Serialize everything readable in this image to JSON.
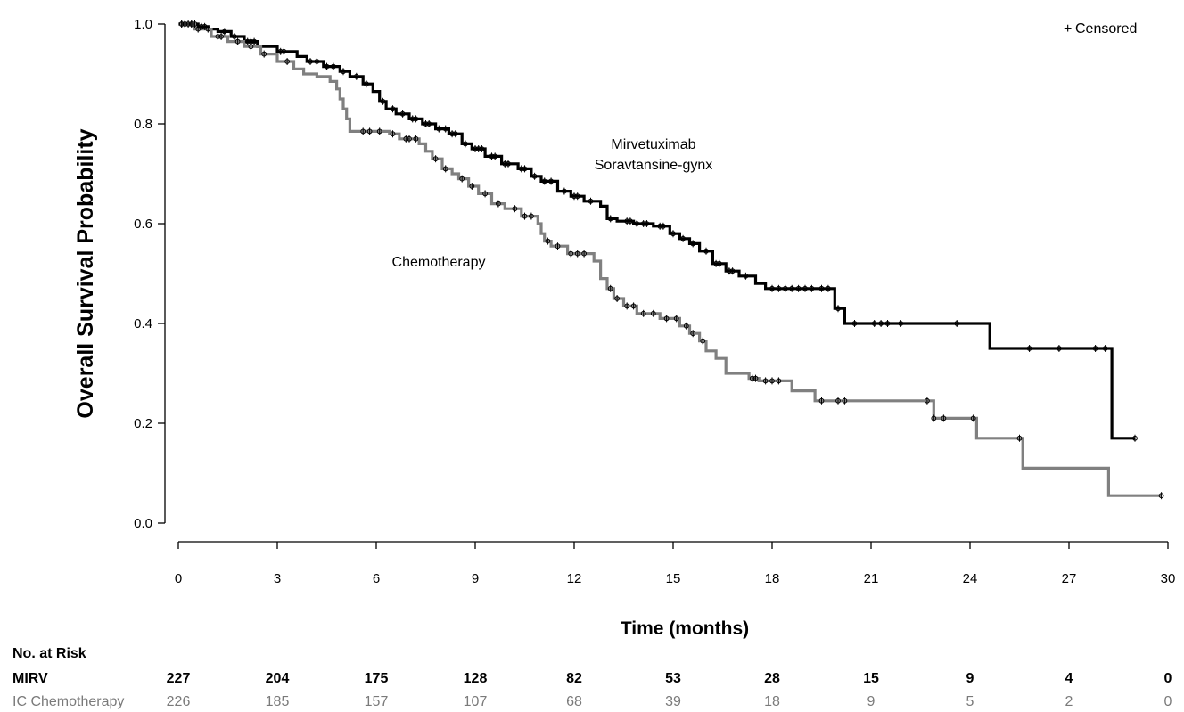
{
  "chart_data": {
    "type": "line",
    "subtype": "kaplan-meier",
    "ylabel": "Overall Survival Probability",
    "xlabel": "Time (months)",
    "xlim": [
      0,
      30
    ],
    "ylim": [
      0.0,
      1.0
    ],
    "x_ticks": [
      "0",
      "3",
      "6",
      "9",
      "12",
      "15",
      "18",
      "21",
      "24",
      "27",
      "30"
    ],
    "y_ticks": [
      "0.0",
      "0.2",
      "0.4",
      "0.6",
      "0.8",
      "1.0"
    ],
    "grid": false,
    "legend": {
      "marker": "+",
      "label": "Censored",
      "placement": "top-right"
    },
    "series": [
      {
        "name": "Mirvetuximab Soravtansine-gynx",
        "label_lines": [
          "Mirvetuximab",
          "Soravtansine-gynx"
        ],
        "color": "#000000",
        "steps": [
          [
            0,
            1.0
          ],
          [
            0.6,
            0.995
          ],
          [
            0.9,
            0.99
          ],
          [
            1.2,
            0.985
          ],
          [
            1.6,
            0.975
          ],
          [
            2.0,
            0.965
          ],
          [
            2.4,
            0.955
          ],
          [
            3.0,
            0.945
          ],
          [
            3.6,
            0.935
          ],
          [
            3.9,
            0.925
          ],
          [
            4.4,
            0.915
          ],
          [
            4.9,
            0.905
          ],
          [
            5.2,
            0.895
          ],
          [
            5.6,
            0.88
          ],
          [
            5.9,
            0.865
          ],
          [
            6.1,
            0.845
          ],
          [
            6.3,
            0.83
          ],
          [
            6.6,
            0.82
          ],
          [
            7.0,
            0.81
          ],
          [
            7.4,
            0.8
          ],
          [
            7.8,
            0.79
          ],
          [
            8.2,
            0.78
          ],
          [
            8.6,
            0.76
          ],
          [
            8.9,
            0.75
          ],
          [
            9.3,
            0.735
          ],
          [
            9.8,
            0.72
          ],
          [
            10.3,
            0.71
          ],
          [
            10.7,
            0.695
          ],
          [
            11.0,
            0.685
          ],
          [
            11.5,
            0.665
          ],
          [
            11.9,
            0.655
          ],
          [
            12.3,
            0.645
          ],
          [
            12.8,
            0.635
          ],
          [
            13.0,
            0.61
          ],
          [
            13.3,
            0.605
          ],
          [
            13.8,
            0.6
          ],
          [
            14.4,
            0.595
          ],
          [
            14.9,
            0.58
          ],
          [
            15.2,
            0.57
          ],
          [
            15.5,
            0.56
          ],
          [
            15.8,
            0.545
          ],
          [
            16.2,
            0.52
          ],
          [
            16.6,
            0.505
          ],
          [
            17.0,
            0.495
          ],
          [
            17.5,
            0.48
          ],
          [
            17.8,
            0.47
          ],
          [
            19.9,
            0.43
          ],
          [
            20.2,
            0.4
          ],
          [
            24.6,
            0.35
          ],
          [
            28.3,
            0.17
          ],
          [
            29.0,
            0.17
          ]
        ],
        "censored": [
          0.1,
          0.2,
          0.3,
          0.4,
          0.5,
          0.7,
          0.8,
          1.4,
          1.7,
          2.1,
          2.2,
          2.3,
          3.1,
          3.2,
          4.0,
          4.2,
          4.5,
          4.7,
          5.0,
          5.4,
          5.7,
          6.2,
          6.5,
          6.8,
          7.1,
          7.2,
          7.5,
          7.6,
          7.9,
          8.1,
          8.3,
          8.4,
          8.7,
          9.0,
          9.1,
          9.2,
          9.5,
          9.6,
          9.9,
          10.0,
          10.4,
          10.5,
          10.8,
          11.1,
          11.3,
          11.7,
          12.0,
          12.1,
          12.5,
          13.1,
          13.6,
          13.7,
          13.9,
          14.1,
          14.2,
          14.6,
          14.7,
          15.0,
          15.3,
          15.6,
          16.0,
          16.3,
          16.4,
          16.7,
          16.8,
          17.2,
          18.0,
          18.2,
          18.4,
          18.6,
          18.8,
          19.0,
          19.2,
          19.5,
          19.7,
          20.0,
          20.5,
          21.1,
          21.3,
          21.5,
          21.9,
          23.6,
          25.8,
          26.7,
          27.8,
          28.1,
          29.0
        ]
      },
      {
        "name": "Chemotherapy",
        "label_lines": [
          "Chemotherapy"
        ],
        "color": "#808080",
        "steps": [
          [
            0,
            1.0
          ],
          [
            0.5,
            0.99
          ],
          [
            1.0,
            0.975
          ],
          [
            1.5,
            0.965
          ],
          [
            2.0,
            0.955
          ],
          [
            2.5,
            0.94
          ],
          [
            3.0,
            0.925
          ],
          [
            3.5,
            0.91
          ],
          [
            3.8,
            0.9
          ],
          [
            4.2,
            0.895
          ],
          [
            4.6,
            0.885
          ],
          [
            4.8,
            0.87
          ],
          [
            4.9,
            0.85
          ],
          [
            5.0,
            0.83
          ],
          [
            5.1,
            0.81
          ],
          [
            5.2,
            0.785
          ],
          [
            6.4,
            0.78
          ],
          [
            6.7,
            0.77
          ],
          [
            7.3,
            0.76
          ],
          [
            7.5,
            0.745
          ],
          [
            7.7,
            0.73
          ],
          [
            8.0,
            0.71
          ],
          [
            8.3,
            0.7
          ],
          [
            8.5,
            0.69
          ],
          [
            8.8,
            0.675
          ],
          [
            9.1,
            0.66
          ],
          [
            9.5,
            0.64
          ],
          [
            9.9,
            0.63
          ],
          [
            10.4,
            0.615
          ],
          [
            10.9,
            0.6
          ],
          [
            11.0,
            0.58
          ],
          [
            11.1,
            0.565
          ],
          [
            11.3,
            0.555
          ],
          [
            11.8,
            0.54
          ],
          [
            12.6,
            0.525
          ],
          [
            12.8,
            0.49
          ],
          [
            13.0,
            0.47
          ],
          [
            13.2,
            0.45
          ],
          [
            13.5,
            0.435
          ],
          [
            13.9,
            0.42
          ],
          [
            14.6,
            0.41
          ],
          [
            15.2,
            0.395
          ],
          [
            15.5,
            0.38
          ],
          [
            15.8,
            0.365
          ],
          [
            16.0,
            0.345
          ],
          [
            16.3,
            0.33
          ],
          [
            16.6,
            0.3
          ],
          [
            17.3,
            0.29
          ],
          [
            17.6,
            0.285
          ],
          [
            18.6,
            0.265
          ],
          [
            19.3,
            0.245
          ],
          [
            22.9,
            0.21
          ],
          [
            24.2,
            0.17
          ],
          [
            25.6,
            0.11
          ],
          [
            28.2,
            0.055
          ],
          [
            29.8,
            0.055
          ]
        ],
        "censored": [
          0.1,
          0.2,
          0.4,
          0.6,
          0.9,
          1.2,
          1.3,
          1.8,
          2.2,
          2.6,
          3.3,
          5.6,
          5.8,
          6.1,
          6.5,
          6.9,
          7.0,
          7.2,
          7.8,
          8.1,
          8.6,
          8.9,
          9.3,
          9.7,
          10.2,
          10.5,
          10.7,
          11.2,
          11.5,
          11.9,
          12.1,
          12.3,
          13.1,
          13.3,
          13.6,
          13.8,
          14.1,
          14.4,
          14.8,
          15.1,
          15.4,
          15.6,
          15.9,
          17.4,
          17.5,
          17.8,
          18.0,
          18.2,
          19.5,
          20.0,
          20.2,
          22.7,
          22.9,
          23.2,
          24.1,
          25.5,
          29.8
        ]
      }
    ],
    "annotations": [
      "Mirvetuximab",
      "Soravtansine-gynx",
      "Chemotherapy"
    ],
    "risk_table": {
      "title": "No. at Risk",
      "rows": [
        {
          "label": "MIRV",
          "values": [
            "227",
            "204",
            "175",
            "128",
            "82",
            "53",
            "28",
            "15",
            "9",
            "4",
            "0"
          ]
        },
        {
          "label": "IC Chemotherapy",
          "values": [
            "226",
            "185",
            "157",
            "107",
            "68",
            "39",
            "18",
            "9",
            "5",
            "2",
            "0"
          ]
        }
      ]
    }
  }
}
